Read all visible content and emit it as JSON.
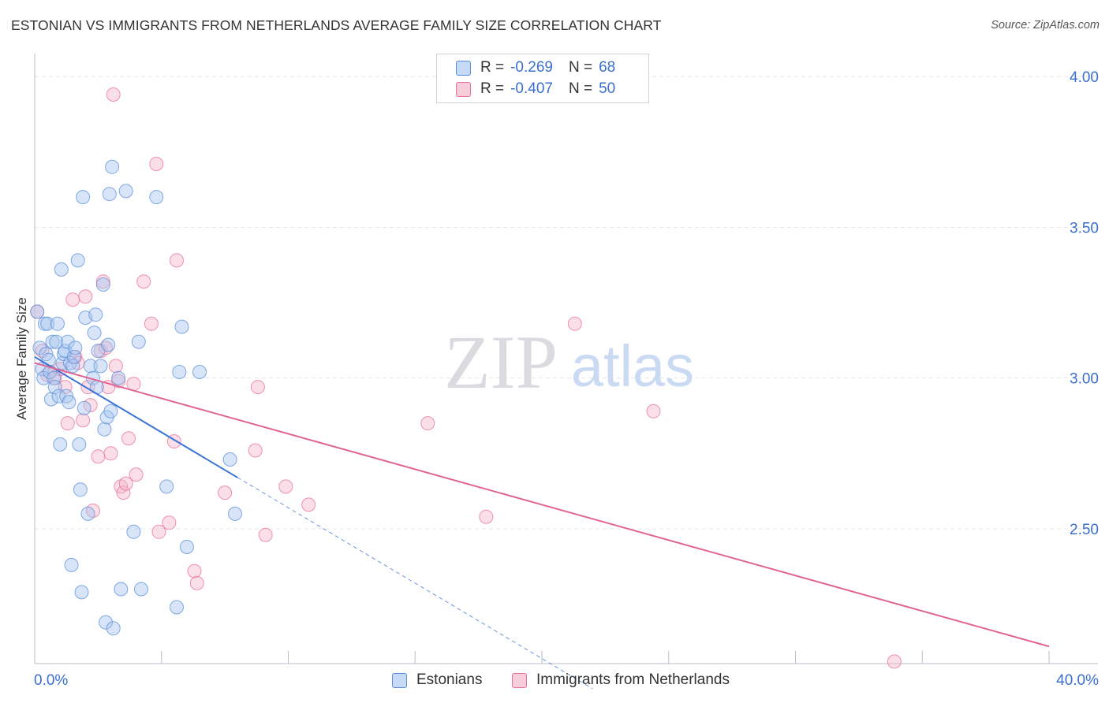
{
  "title": "ESTONIAN VS IMMIGRANTS FROM NETHERLANDS AVERAGE FAMILY SIZE CORRELATION CHART",
  "source": "Source: ZipAtlas.com",
  "watermark": {
    "zip": "ZIP",
    "atlas": "atlas"
  },
  "colors": {
    "blue": "#5a8fd8",
    "blue_fill": "#a9c6f0",
    "pink": "#e8709a",
    "pink_fill": "#f5b8cc",
    "axis_text": "#3a6fd0",
    "grid": "#e2e5ea"
  },
  "legend": {
    "rows": [
      {
        "r_label": "R =",
        "r_value": "-0.269",
        "n_label": "N =",
        "n_value": "68"
      },
      {
        "r_label": "R =",
        "r_value": "-0.407",
        "n_label": "N =",
        "n_value": "50"
      }
    ]
  },
  "bottom_legend": [
    "Estonians",
    "Immigrants from Netherlands"
  ],
  "chart_data": {
    "type": "scatter",
    "title": "ESTONIAN VS IMMIGRANTS FROM NETHERLANDS AVERAGE FAMILY SIZE CORRELATION CHART",
    "xlabel": "",
    "ylabel": "Average Family Size",
    "xlim": [
      0,
      40
    ],
    "ylim": [
      2.0,
      4.1
    ],
    "x_tick_labels": [
      "0.0%",
      "40.0%"
    ],
    "y_ticks": [
      2.5,
      3.0,
      3.5,
      4.0
    ],
    "y_tick_labels": [
      "2.50",
      "3.00",
      "3.50",
      "4.00"
    ],
    "grid": true,
    "series": [
      {
        "name": "Estonians",
        "r": -0.269,
        "n": 68,
        "trend": {
          "x0": 0.0,
          "y0": 3.07,
          "x1": 8.0,
          "y1": 2.67,
          "dashed_to_x": 22.0
        },
        "points": [
          [
            0.1,
            3.22
          ],
          [
            0.2,
            3.1
          ],
          [
            0.3,
            3.03
          ],
          [
            0.35,
            3.0
          ],
          [
            0.4,
            3.18
          ],
          [
            0.45,
            3.08
          ],
          [
            0.5,
            3.18
          ],
          [
            0.55,
            3.06
          ],
          [
            0.6,
            3.02
          ],
          [
            0.65,
            2.93
          ],
          [
            0.7,
            3.12
          ],
          [
            0.75,
            3.0
          ],
          [
            0.8,
            2.97
          ],
          [
            0.85,
            3.12
          ],
          [
            0.9,
            3.18
          ],
          [
            0.95,
            2.94
          ],
          [
            1.0,
            2.78
          ],
          [
            1.05,
            3.36
          ],
          [
            1.1,
            3.05
          ],
          [
            1.15,
            3.08
          ],
          [
            1.2,
            3.09
          ],
          [
            1.25,
            2.94
          ],
          [
            1.3,
            3.12
          ],
          [
            1.35,
            2.92
          ],
          [
            1.4,
            3.05
          ],
          [
            1.45,
            2.38
          ],
          [
            1.5,
            3.04
          ],
          [
            1.55,
            3.07
          ],
          [
            1.6,
            3.1
          ],
          [
            1.7,
            3.39
          ],
          [
            1.75,
            2.78
          ],
          [
            1.8,
            2.63
          ],
          [
            1.85,
            2.29
          ],
          [
            1.9,
            3.6
          ],
          [
            1.95,
            2.9
          ],
          [
            2.0,
            3.2
          ],
          [
            2.1,
            2.55
          ],
          [
            2.2,
            3.04
          ],
          [
            2.3,
            3.0
          ],
          [
            2.35,
            3.15
          ],
          [
            2.4,
            3.21
          ],
          [
            2.45,
            2.97
          ],
          [
            2.5,
            3.09
          ],
          [
            2.6,
            3.04
          ],
          [
            2.7,
            3.31
          ],
          [
            2.75,
            2.83
          ],
          [
            2.8,
            2.19
          ],
          [
            2.85,
            2.87
          ],
          [
            2.9,
            3.11
          ],
          [
            2.95,
            3.61
          ],
          [
            3.0,
            2.89
          ],
          [
            3.05,
            3.7
          ],
          [
            3.1,
            2.17
          ],
          [
            3.3,
            3.0
          ],
          [
            3.4,
            2.3
          ],
          [
            3.6,
            3.62
          ],
          [
            3.9,
            2.49
          ],
          [
            4.1,
            3.12
          ],
          [
            4.2,
            2.3
          ],
          [
            4.8,
            3.6
          ],
          [
            5.2,
            2.64
          ],
          [
            5.6,
            2.24
          ],
          [
            5.7,
            3.02
          ],
          [
            5.8,
            3.17
          ],
          [
            6.0,
            2.44
          ],
          [
            6.5,
            3.02
          ],
          [
            7.7,
            2.73
          ],
          [
            7.9,
            2.55
          ]
        ]
      },
      {
        "name": "Immigrants from Netherlands",
        "r": -0.407,
        "n": 50,
        "trend": {
          "x0": 0.0,
          "y0": 3.05,
          "x1": 40.0,
          "y1": 2.11
        },
        "points": [
          [
            0.1,
            3.22
          ],
          [
            0.3,
            3.09
          ],
          [
            0.5,
            3.01
          ],
          [
            0.8,
            3.0
          ],
          [
            1.0,
            3.03
          ],
          [
            1.2,
            2.97
          ],
          [
            1.3,
            2.85
          ],
          [
            1.5,
            3.26
          ],
          [
            1.6,
            3.07
          ],
          [
            1.7,
            3.05
          ],
          [
            1.9,
            2.86
          ],
          [
            2.0,
            3.27
          ],
          [
            2.1,
            2.97
          ],
          [
            2.2,
            2.91
          ],
          [
            2.3,
            2.56
          ],
          [
            2.5,
            2.74
          ],
          [
            2.6,
            3.09
          ],
          [
            2.7,
            3.32
          ],
          [
            2.8,
            3.1
          ],
          [
            2.9,
            2.97
          ],
          [
            3.0,
            2.75
          ],
          [
            3.1,
            3.94
          ],
          [
            3.2,
            3.04
          ],
          [
            3.3,
            2.99
          ],
          [
            3.4,
            2.64
          ],
          [
            3.5,
            2.62
          ],
          [
            3.6,
            2.65
          ],
          [
            3.7,
            2.8
          ],
          [
            3.9,
            2.98
          ],
          [
            4.0,
            2.68
          ],
          [
            4.3,
            3.32
          ],
          [
            4.6,
            3.18
          ],
          [
            4.8,
            3.71
          ],
          [
            4.9,
            2.49
          ],
          [
            5.3,
            2.52
          ],
          [
            5.5,
            2.79
          ],
          [
            5.6,
            3.39
          ],
          [
            6.3,
            2.36
          ],
          [
            6.4,
            2.32
          ],
          [
            7.5,
            2.62
          ],
          [
            8.7,
            2.76
          ],
          [
            8.8,
            2.97
          ],
          [
            9.1,
            2.48
          ],
          [
            9.9,
            2.64
          ],
          [
            10.8,
            2.58
          ],
          [
            15.5,
            2.85
          ],
          [
            17.8,
            2.54
          ],
          [
            21.3,
            3.18
          ],
          [
            24.4,
            2.89
          ],
          [
            33.9,
            2.06
          ]
        ]
      }
    ]
  }
}
